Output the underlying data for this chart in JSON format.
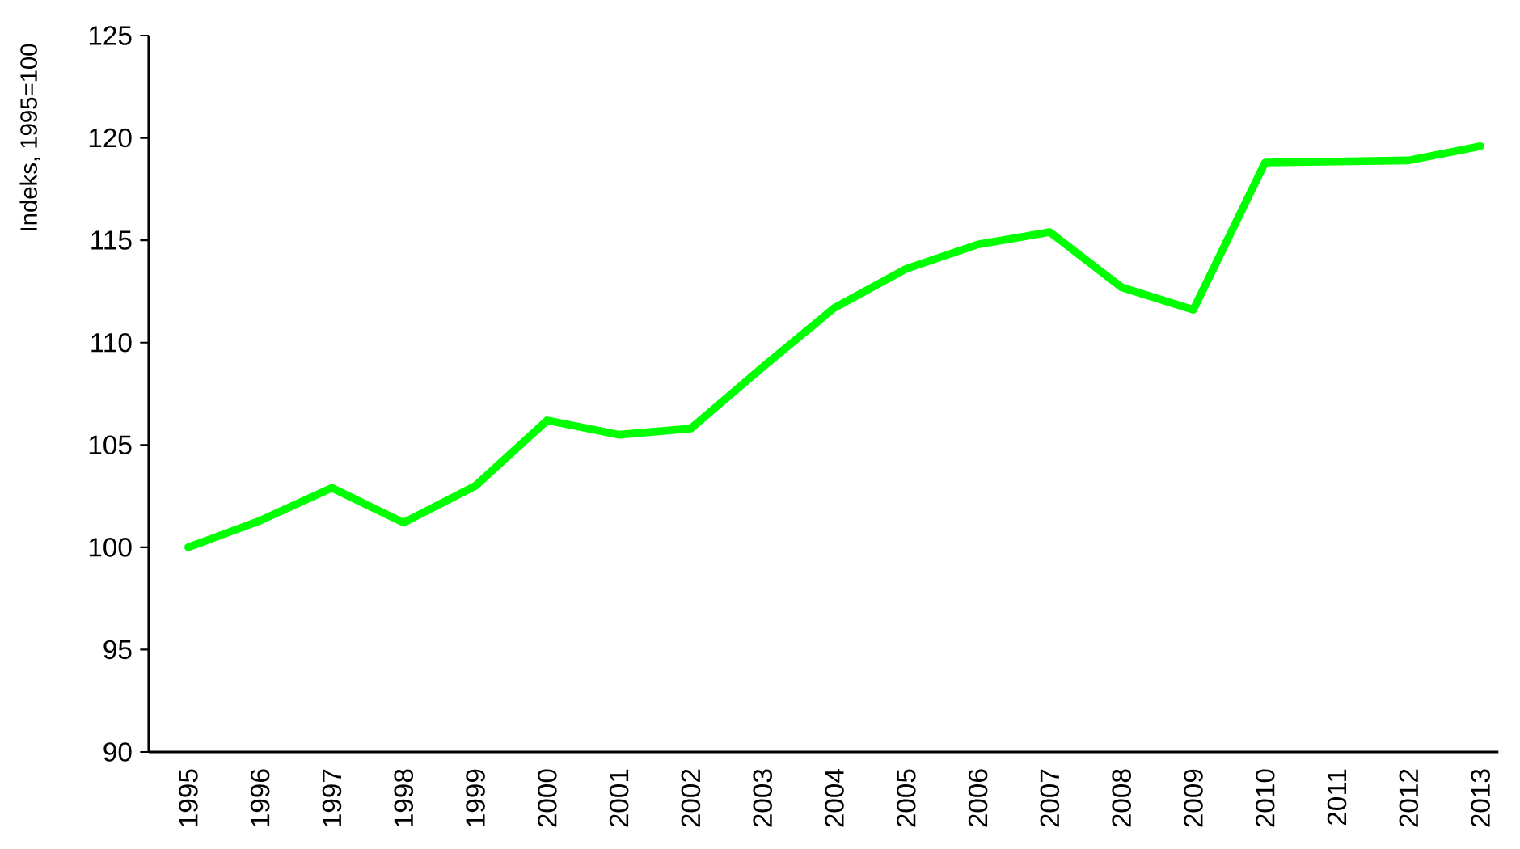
{
  "chart_data": {
    "type": "line",
    "ylabel": "Indeks, 1995=100",
    "categories": [
      "1995",
      "1996",
      "1997",
      "1998",
      "1999",
      "2000",
      "2001",
      "2002",
      "2003",
      "2004",
      "2005",
      "2006",
      "2007",
      "2008",
      "2009",
      "2010",
      "2011",
      "2012",
      "2013"
    ],
    "series": [
      {
        "color": "#00ff00",
        "values": [
          100,
          101.3,
          102.9,
          101.2,
          103.0,
          106.2,
          105.5,
          105.8,
          108.8,
          111.7,
          113.6,
          114.8,
          115.4,
          112.7,
          111.6,
          118.8,
          118.85,
          118.9,
          119.6
        ]
      }
    ],
    "ylim": [
      90,
      125
    ],
    "yticks": [
      90,
      95,
      100,
      105,
      110,
      115,
      120,
      125
    ],
    "grid": false,
    "marker": "none",
    "line_style": "solid"
  }
}
